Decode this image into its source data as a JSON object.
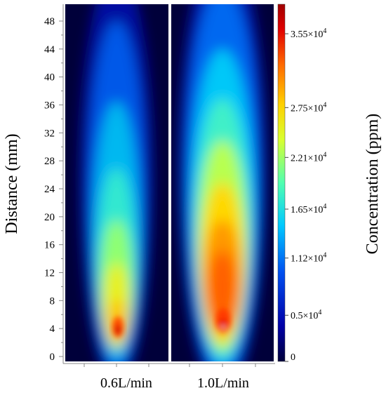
{
  "left_axis": {
    "title": "Distance (mm)",
    "ticks": [
      "0",
      "4",
      "8",
      "12",
      "16",
      "20",
      "24",
      "28",
      "32",
      "36",
      "40",
      "44",
      "48"
    ]
  },
  "panels": [
    {
      "label": "0.6L/min"
    },
    {
      "label": "1.0L/min"
    }
  ],
  "colorbar": {
    "title": "Concentration (ppm)",
    "ticks": [
      {
        "label": "0",
        "value": 0
      },
      {
        "label": "0.5×10",
        "exp": "4",
        "value": 5000
      },
      {
        "label": "1.12×10",
        "exp": "4",
        "value": 11200
      },
      {
        "label": "1.65×10",
        "exp": "4",
        "value": 16500
      },
      {
        "label": "2.21×10",
        "exp": "4",
        "value": 22100
      },
      {
        "label": "2.75×10",
        "exp": "4",
        "value": 27500
      },
      {
        "label": "3.55×10",
        "exp": "4",
        "value": 35500
      }
    ],
    "colors": [
      "#00003a",
      "#0000a8",
      "#0050f0",
      "#00c8ff",
      "#50ffb0",
      "#d8ff30",
      "#ffd000",
      "#ff6a00",
      "#e00000",
      "#a00000"
    ]
  }
}
